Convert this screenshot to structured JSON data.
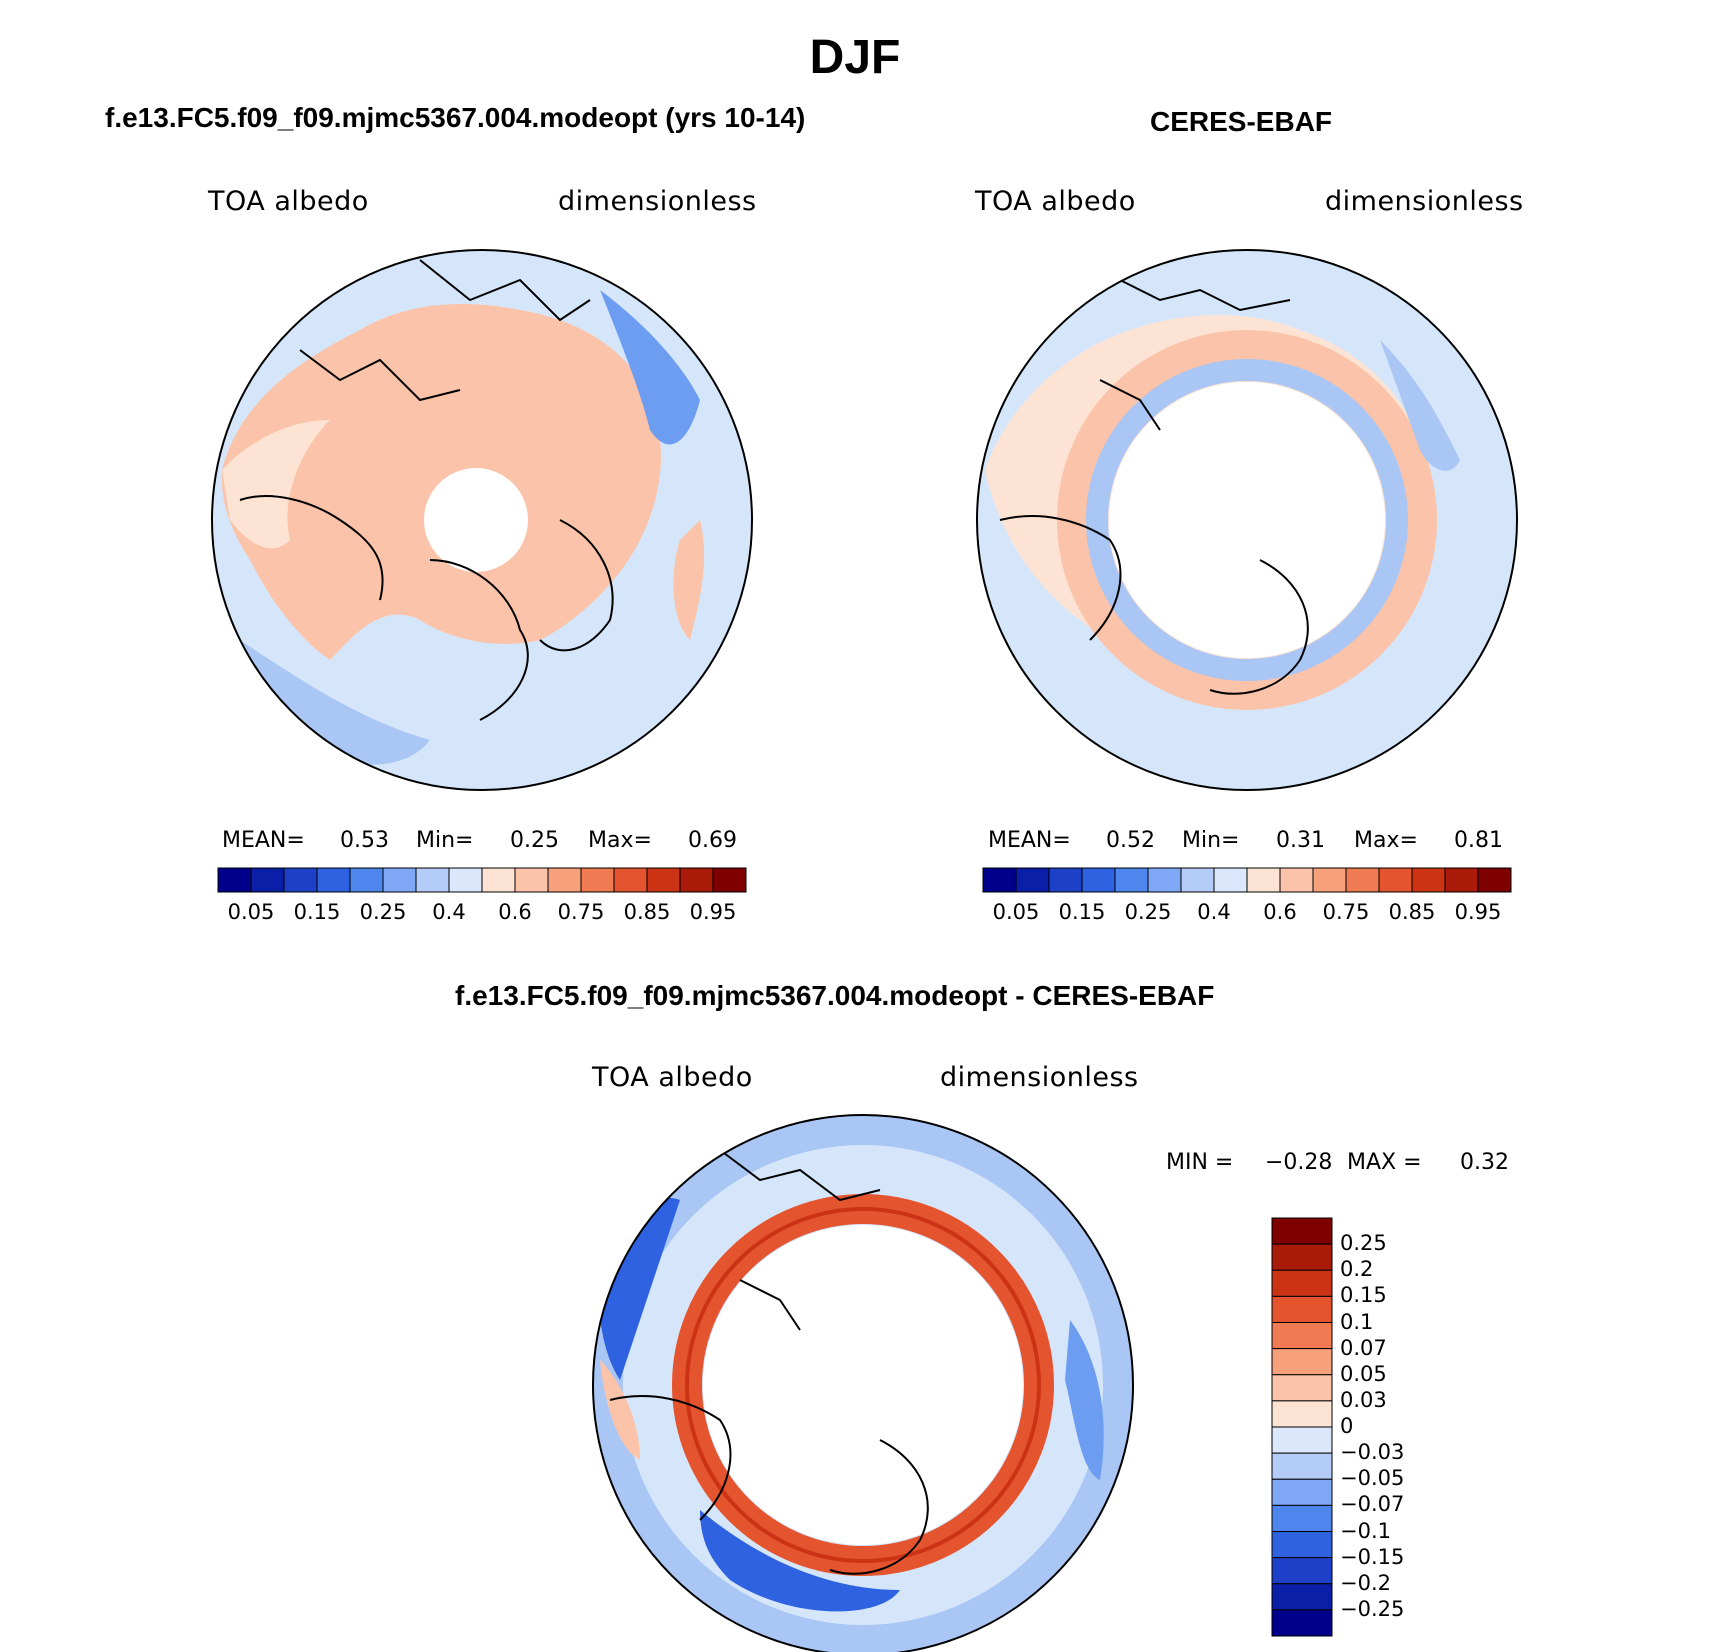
{
  "figure": {
    "season_title": "DJF",
    "panels": [
      {
        "title": "f.e13.FC5.f09_f09.mjmc5367.004.modeopt (yrs 10-14)",
        "variable": "TOA albedo",
        "units": "dimensionless",
        "stats": {
          "mean_label": "MEAN=",
          "mean": "0.53",
          "min_label": "Min=",
          "min": "0.25",
          "max_label": "Max=",
          "max": "0.69"
        }
      },
      {
        "title": "CERES-EBAF",
        "variable": "TOA albedo",
        "units": "dimensionless",
        "stats": {
          "mean_label": "MEAN=",
          "mean": "0.52",
          "min_label": "Min=",
          "min": "0.31",
          "max_label": "Max=",
          "max": "0.81"
        }
      },
      {
        "title": "f.e13.FC5.f09_f09.mjmc5367.004.modeopt - CERES-EBAF",
        "variable": "TOA albedo",
        "units": "dimensionless",
        "stats": {
          "min_label": "MIN =",
          "min": "−0.28",
          "max_label": "MAX =",
          "max": "0.32"
        }
      }
    ],
    "colorbar_abs": {
      "tick_labels": [
        "0.05",
        "0.15",
        "0.25",
        "0.4",
        "0.6",
        "0.75",
        "0.85",
        "0.95"
      ],
      "colors": [
        "#00008b",
        "#0a1ea8",
        "#1e40c8",
        "#2e62e0",
        "#4f86ee",
        "#7ea8f5",
        "#b4ccf8",
        "#dbe8fb",
        "#fde3d3",
        "#fbc3a9",
        "#f7a07c",
        "#f07a52",
        "#e4552f",
        "#cc3314",
        "#a91a08",
        "#7f0000"
      ]
    },
    "colorbar_diff": {
      "tick_labels": [
        "0.25",
        "0.2",
        "0.15",
        "0.1",
        "0.07",
        "0.05",
        "0.03",
        "0",
        "−0.03",
        "−0.05",
        "−0.07",
        "−0.1",
        "−0.15",
        "−0.2",
        "−0.25"
      ],
      "colors": [
        "#7f0000",
        "#a91a08",
        "#cc3314",
        "#e4552f",
        "#f07a52",
        "#f7a07c",
        "#fbc3a9",
        "#fde3d3",
        "#dbe8fb",
        "#b4ccf8",
        "#7ea8f5",
        "#4f86ee",
        "#2e62e0",
        "#1e40c8",
        "#0a1ea8",
        "#00008b"
      ]
    },
    "map_colors": {
      "light_blue": "#d6e6fa",
      "mid_blue": "#a9c6f4",
      "blue": "#6d9df0",
      "deep_blue": "#2e62e0",
      "light_orange": "#fde3d3",
      "orange": "#fbc3a9",
      "red_orange": "#e4552f",
      "white": "#ffffff"
    }
  }
}
